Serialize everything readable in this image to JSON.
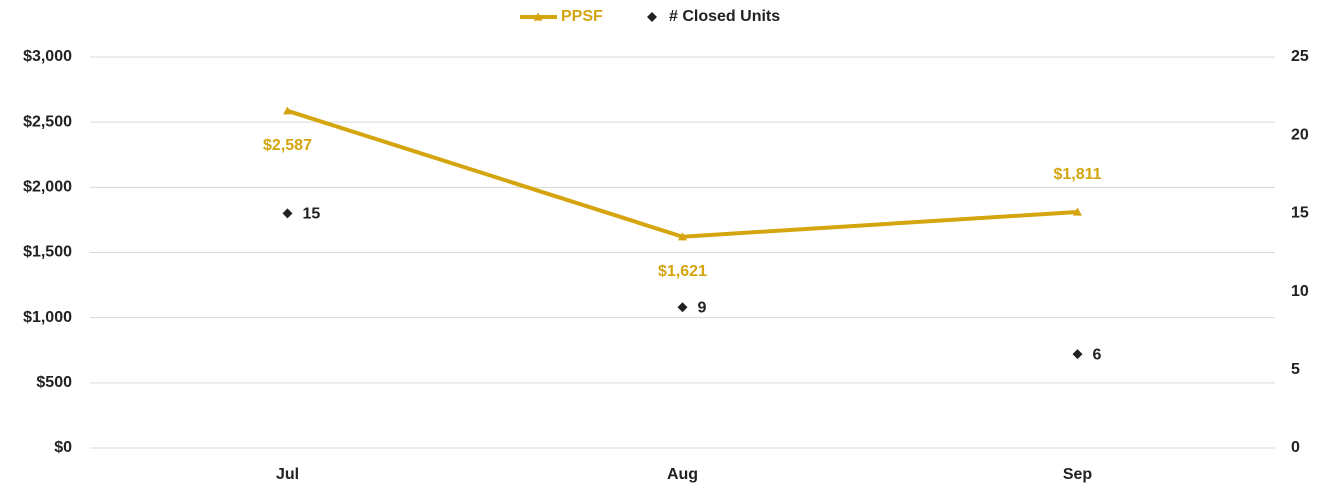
{
  "chart_data": {
    "type": "line",
    "categories": [
      "Jul",
      "Aug",
      "Sep"
    ],
    "series": [
      {
        "name": "PPSF",
        "color": "#d4a50e",
        "marker": "triangle",
        "values": [
          2587,
          1621,
          1811
        ],
        "value_labels": [
          "$2,587",
          "$1,621",
          "$1,811"
        ]
      },
      {
        "name": "# Closed Units",
        "color": "#222222",
        "marker": "diamond",
        "axis": "y2",
        "line": false,
        "values": [
          15,
          9,
          6
        ]
      }
    ],
    "ylim": [
      0,
      3000
    ],
    "yticks": [
      {
        "value": 0,
        "label": "$0"
      },
      {
        "value": 500,
        "label": "$500"
      },
      {
        "value": 1000,
        "label": "$1,000"
      },
      {
        "value": 1500,
        "label": "$1,500"
      },
      {
        "value": 2000,
        "label": "$2,000"
      },
      {
        "value": 2500,
        "label": "$2,500"
      },
      {
        "value": 3000,
        "label": "$3,000"
      }
    ],
    "y2lim": [
      0,
      25
    ],
    "y2ticks": [
      0,
      5,
      10,
      15,
      20,
      25
    ],
    "grid": true,
    "legend": "top"
  }
}
